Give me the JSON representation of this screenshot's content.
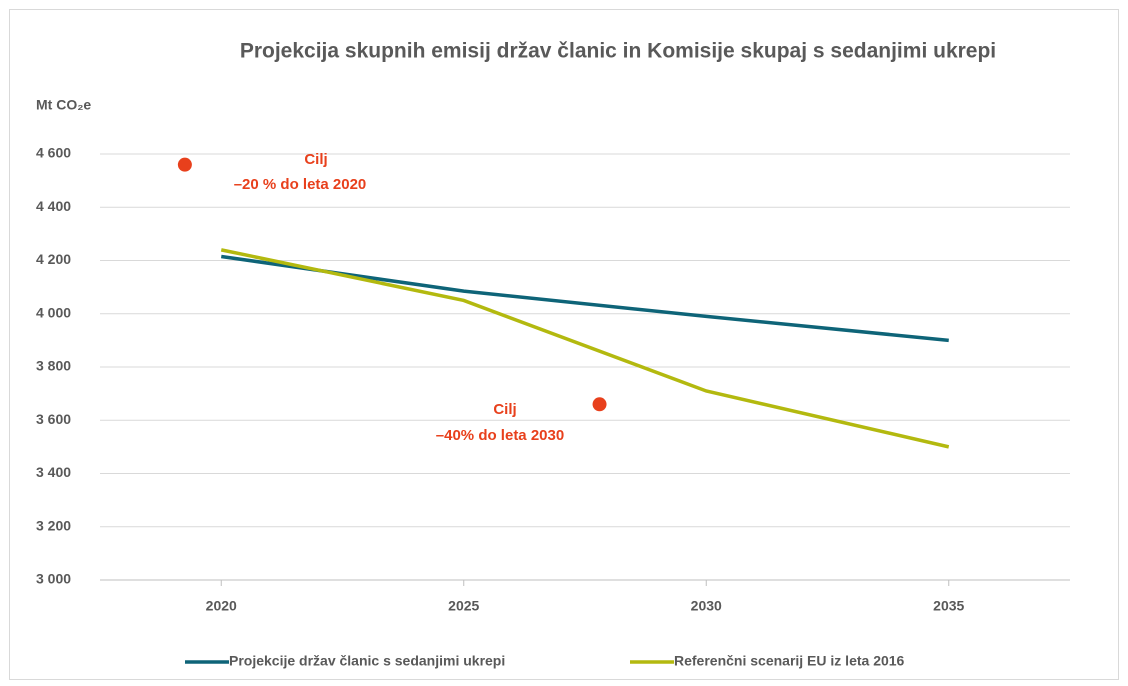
{
  "chart_data": {
    "type": "line",
    "title": "Projekcija skupnih emisij držav članic in Komisije skupaj s sedanjimi ukrepi",
    "y_label": "Mt CO₂e",
    "x": [
      2020,
      2025,
      2030,
      2035
    ],
    "series": [
      {
        "name": "Projekcije držav članic s sedanjimi ukrepi",
        "color": "#0e6478",
        "values": [
          4215,
          4085,
          3990,
          3900
        ]
      },
      {
        "name": "Referenčni scenarij EU iz leta 2016",
        "color": "#b3b90f",
        "values": [
          4240,
          4050,
          3710,
          3500
        ]
      }
    ],
    "targets": [
      {
        "x": 2019.25,
        "y": 4560,
        "color": "#e8401c",
        "label": [
          "Cilj",
          "–20 % do leta 2020"
        ]
      },
      {
        "x": 2027.8,
        "y": 3660,
        "color": "#e8401c",
        "label": [
          "Cilj",
          "–40% do leta 2030"
        ]
      }
    ],
    "xlim": [
      2017.5,
      2037.5
    ],
    "xticks": [
      2020,
      2025,
      2030,
      2035
    ],
    "ylim": [
      3000,
      4600
    ],
    "yticks": [
      {
        "value": 3000,
        "label": "3 000"
      },
      {
        "value": 3200,
        "label": "3 200"
      },
      {
        "value": 3400,
        "label": "3 400"
      },
      {
        "value": 3600,
        "label": "3 600"
      },
      {
        "value": 3800,
        "label": "3 800"
      },
      {
        "value": 4000,
        "label": "4 000"
      },
      {
        "value": 4200,
        "label": "4 200"
      },
      {
        "value": 4400,
        "label": "4 400"
      },
      {
        "value": 4600,
        "label": "4 600"
      }
    ],
    "grid": true,
    "legend": "bottom"
  }
}
